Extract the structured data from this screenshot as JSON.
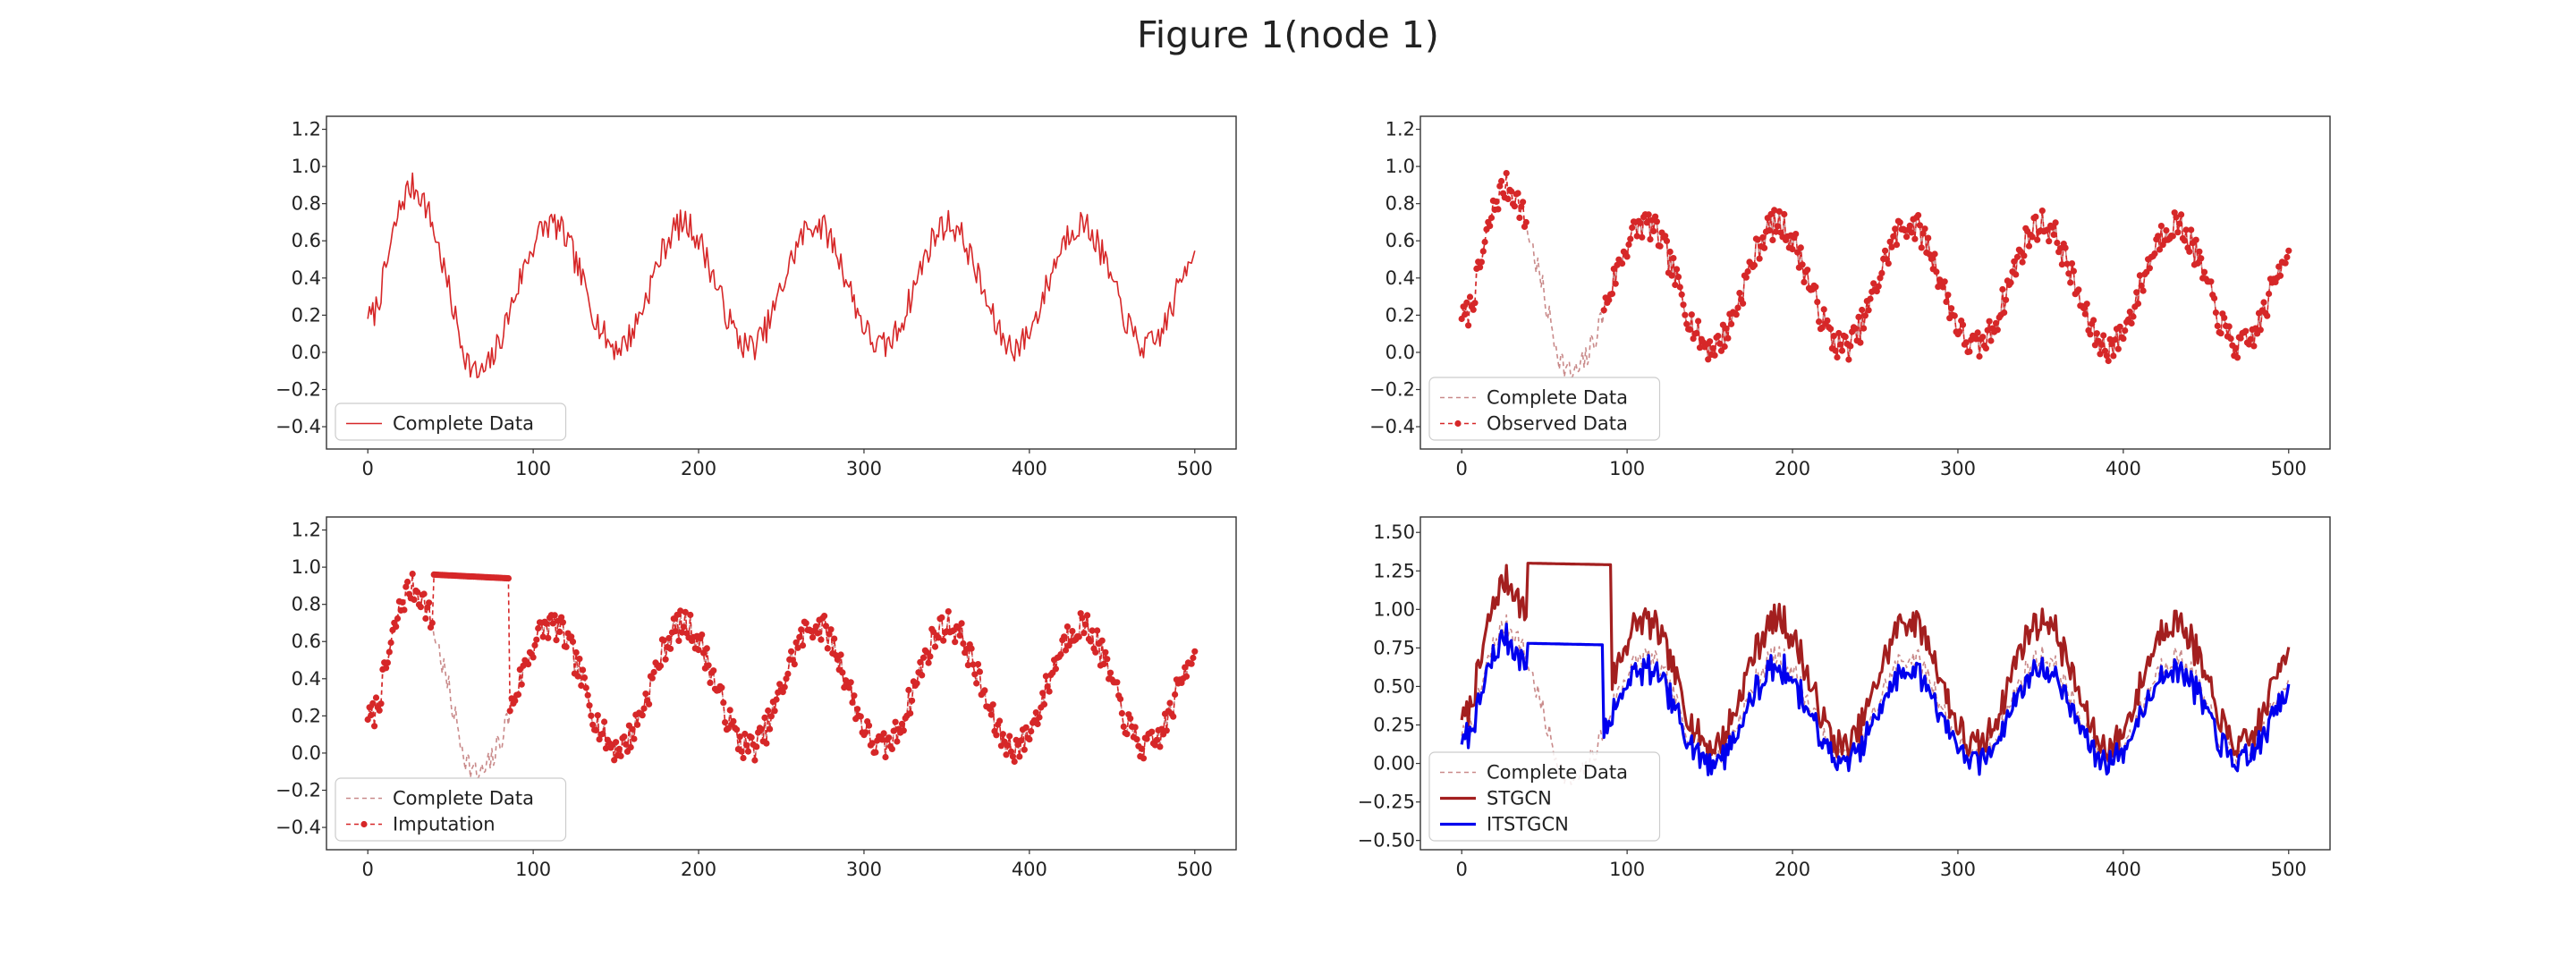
{
  "figure": {
    "title": "Figure 1(node 1)",
    "colors": {
      "complete": "#d62728",
      "complete_faint": "#c98a8a",
      "stgcn": "#a31f1f",
      "itstgcn": "#0000ee",
      "frame": "#333333"
    }
  },
  "chart_data": [
    {
      "type": "line",
      "position": "top-left",
      "xlim": [
        -25,
        525
      ],
      "ylim": [
        -0.52,
        1.27
      ],
      "xticks": [
        0,
        100,
        200,
        300,
        400,
        500
      ],
      "yticks": [
        -0.4,
        -0.2,
        0.0,
        0.2,
        0.4,
        0.6,
        0.8,
        1.0,
        1.2
      ],
      "ytick_labels": [
        "−0.4",
        "−0.2",
        "0.0",
        "0.2",
        "0.4",
        "0.6",
        "0.8",
        "1.0",
        "1.2"
      ],
      "legend_location": "lower-left",
      "series": [
        {
          "name": "Complete Data",
          "style": "solid",
          "source": "complete"
        }
      ]
    },
    {
      "type": "line",
      "position": "top-right",
      "xlim": [
        -25,
        525
      ],
      "ylim": [
        -0.52,
        1.27
      ],
      "xticks": [
        0,
        100,
        200,
        300,
        400,
        500
      ],
      "yticks": [
        -0.4,
        -0.2,
        0.0,
        0.2,
        0.4,
        0.6,
        0.8,
        1.0,
        1.2
      ],
      "ytick_labels": [
        "−0.4",
        "−0.2",
        "0.0",
        "0.2",
        "0.4",
        "0.6",
        "0.8",
        "1.0",
        "1.2"
      ],
      "legend_location": "lower-left",
      "series": [
        {
          "name": "Complete Data",
          "style": "dashed-faint",
          "source": "complete"
        },
        {
          "name": "Observed Data",
          "style": "dashed-markers",
          "source": "observed",
          "missing_range": [
            40,
            85
          ]
        }
      ]
    },
    {
      "type": "line",
      "position": "bottom-left",
      "xlim": [
        -25,
        525
      ],
      "ylim": [
        -0.52,
        1.27
      ],
      "xticks": [
        0,
        100,
        200,
        300,
        400,
        500
      ],
      "yticks": [
        -0.4,
        -0.2,
        0.0,
        0.2,
        0.4,
        0.6,
        0.8,
        1.0,
        1.2
      ],
      "ytick_labels": [
        "−0.4",
        "−0.2",
        "0.0",
        "0.2",
        "0.4",
        "0.6",
        "0.8",
        "1.0",
        "1.2"
      ],
      "legend_location": "lower-left",
      "series": [
        {
          "name": "Complete Data",
          "style": "dashed-faint",
          "source": "complete"
        },
        {
          "name": "Imputation",
          "style": "dashed-markers",
          "source": "imputed",
          "imputed_range": [
            40,
            85
          ],
          "imputed_from": 0.96,
          "imputed_to": 0.94
        }
      ]
    },
    {
      "type": "line",
      "position": "bottom-right",
      "xlim": [
        -25,
        525
      ],
      "ylim": [
        -0.56,
        1.6
      ],
      "xticks": [
        0,
        100,
        200,
        300,
        400,
        500
      ],
      "yticks": [
        -0.5,
        -0.25,
        0.0,
        0.25,
        0.5,
        0.75,
        1.0,
        1.25,
        1.5
      ],
      "ytick_labels": [
        "−0.50",
        "−0.25",
        "0.00",
        "0.25",
        "0.50",
        "0.75",
        "1.00",
        "1.25",
        "1.50"
      ],
      "legend_location": "lower-left",
      "series": [
        {
          "name": "Complete Data",
          "style": "dashed-faint",
          "source": "complete"
        },
        {
          "name": "STGCN",
          "style": "solid-thick",
          "source": "stgcn",
          "flat_range": [
            40,
            90
          ],
          "flat_from": 1.3,
          "flat_to": 1.29
        },
        {
          "name": "ITSTGCN",
          "style": "solid-thick",
          "source": "itstgcn",
          "flat_range": [
            40,
            85
          ],
          "flat_from": 0.78,
          "flat_to": 0.77
        }
      ]
    }
  ]
}
